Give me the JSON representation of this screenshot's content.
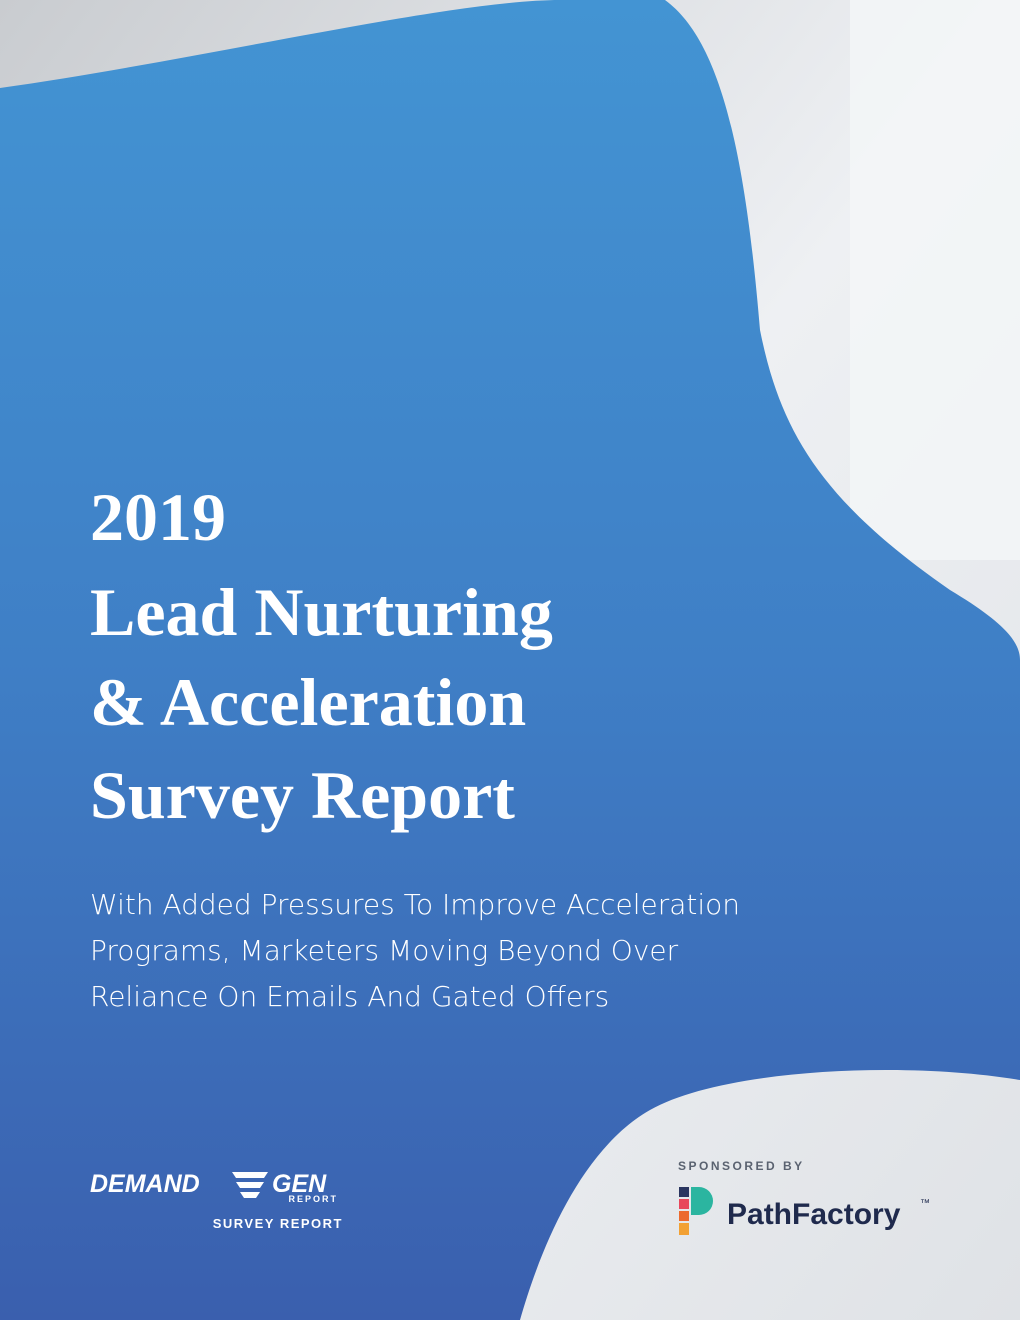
{
  "cover": {
    "title_lines": [
      "2019",
      "Lead Nurturing",
      "& Acceleration",
      "Survey Report"
    ],
    "subtitle_lines": [
      "With Added Pressures To Improve Acceleration",
      "Programs, Marketers Moving Beyond Over",
      "Reliance On Emails And Gated Offers"
    ],
    "publisher": {
      "name_left": "DEMAND",
      "name_right": "GEN",
      "name_sub": "REPORT",
      "tagline": "SURVEY REPORT"
    },
    "sponsor": {
      "label": "SPONSORED BY",
      "name": "PathFactory",
      "mark": "™"
    }
  }
}
